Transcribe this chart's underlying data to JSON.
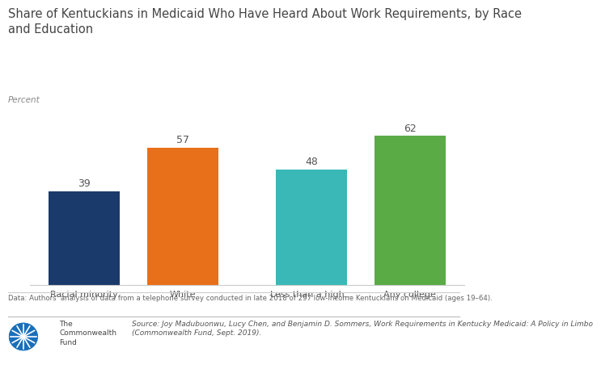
{
  "title_line1": "Share of Kentuckians in Medicaid Who Have Heard About Work Requirements, by Race",
  "title_line2": "and Education",
  "ylabel": "Percent",
  "categories": [
    "Racial minority",
    "White",
    "Less than a high...",
    "Any college"
  ],
  "values": [
    39,
    57,
    48,
    62
  ],
  "bar_colors": [
    "#1a3a6b",
    "#e8701a",
    "#3ab8b8",
    "#5aaa46"
  ],
  "bar_label_fontsize": 9,
  "title_fontsize": 10.5,
  "ylabel_fontsize": 7.5,
  "xtick_fontsize": 8,
  "footnote": "Data: Authors' analysis of data from a telephone survey conducted in late 2018 of 297 low-income Kentuckians on Medicaid (ages 19–64).",
  "source_line1": "Source: Joy Madubuonwu, Lucy Chen, and Benjamin D. Sommers, Work Requirements in Kentucky Medicaid: A Policy in Limbo",
  "source_line2": "(Commonwealth Fund, Sept. 2019).",
  "bg_color": "#ffffff",
  "ylim": [
    0,
    75
  ],
  "x_positions": [
    0,
    1,
    2.3,
    3.3
  ],
  "bar_width": 0.72,
  "xlim": [
    -0.55,
    3.85
  ]
}
